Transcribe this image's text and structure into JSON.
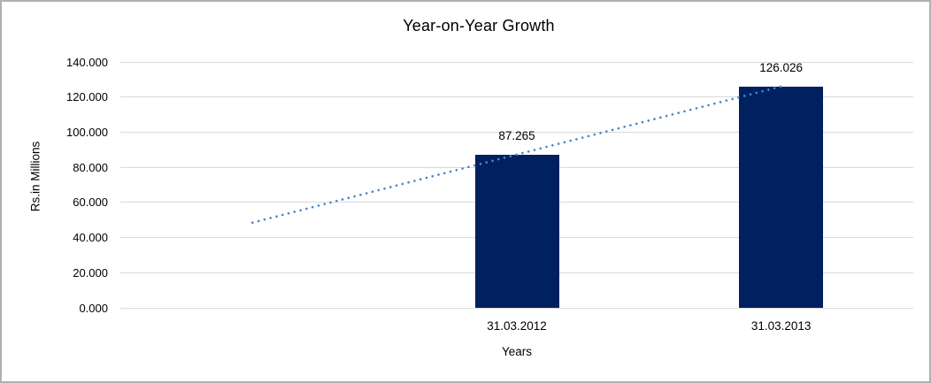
{
  "chart": {
    "title": "Year-on-Year Growth",
    "y_axis_title": "Rs.in Millions",
    "x_axis_title": "Years"
  },
  "colors": {
    "bar": "#002060",
    "trendline": "#4a86c8",
    "gridline": "#d9d9d9",
    "frame_border": "#b0b0b0",
    "text": "#000000",
    "background": "#ffffff"
  },
  "chart_data": {
    "type": "bar",
    "title": "Year-on-Year Growth",
    "xlabel": "Years",
    "ylabel": "Rs.in Millions",
    "categories": [
      "31.03.2012",
      "31.03.2013"
    ],
    "values": [
      87.265,
      126.026
    ],
    "data_labels": [
      "87.265",
      "126.026"
    ],
    "ylim": [
      0,
      140
    ],
    "y_tick_step": 20,
    "y_tick_labels": [
      "140.000",
      "120.000",
      "100.000",
      "80.000",
      "60.000",
      "40.000",
      "20.000",
      "0.000"
    ],
    "grid": true,
    "legend": "none",
    "layout_slots": 3,
    "bar_slots": [
      1,
      2
    ],
    "trendline": {
      "type": "linear",
      "style": "dotted",
      "start_slot": 0,
      "end_slot": 2,
      "start_value": 48.5,
      "end_value": 126.026
    }
  }
}
